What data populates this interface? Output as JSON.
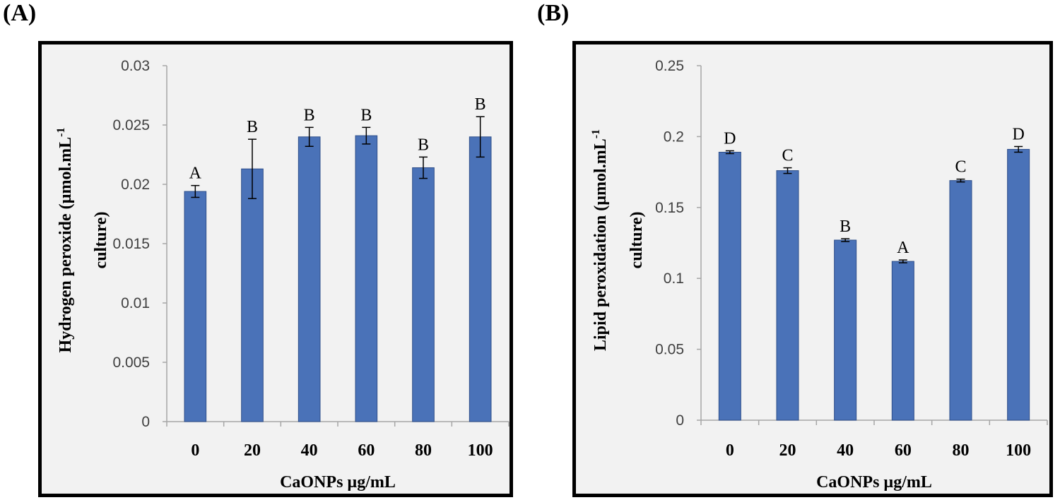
{
  "panels": {
    "a_label": "(A)",
    "b_label": "(B)"
  },
  "colors": {
    "bar": "#4a72b8",
    "bar_stroke": "#2f4f8a",
    "axis": "#a6a6a6"
  },
  "chart_data": [
    {
      "type": "bar",
      "title": "",
      "xlabel": "CaONPs µg/mL",
      "ylabel_line1": "Hydrogen peroxide (µmol.mL",
      "ylabel_sup": "-1",
      "ylabel_line2": "culture)",
      "categories": [
        "0",
        "20",
        "40",
        "60",
        "80",
        "100"
      ],
      "values": [
        0.0194,
        0.0213,
        0.024,
        0.0241,
        0.0214,
        0.024
      ],
      "errors": [
        0.0005,
        0.0025,
        0.0008,
        0.0007,
        0.0009,
        0.0017
      ],
      "letters": [
        "A",
        "B",
        "B",
        "B",
        "B",
        "B"
      ],
      "ylim": [
        0,
        0.03
      ],
      "yticks": [
        0,
        0.005,
        0.01,
        0.015,
        0.02,
        0.025,
        0.03
      ],
      "ytick_labels": [
        "0",
        "0.005",
        "0.01",
        "0.015",
        "0.02",
        "0.025",
        "0.03"
      ],
      "grid": false,
      "legend": "none"
    },
    {
      "type": "bar",
      "title": "",
      "xlabel": "CaONPs µg/mL",
      "ylabel_line1": "Lipid  peroxidation (µmol.mL",
      "ylabel_sup": "-1",
      "ylabel_line2": "culture)",
      "categories": [
        "0",
        "20",
        "40",
        "60",
        "80",
        "100"
      ],
      "values": [
        0.189,
        0.176,
        0.127,
        0.112,
        0.169,
        0.191
      ],
      "errors": [
        0.001,
        0.002,
        0.001,
        0.001,
        0.001,
        0.002
      ],
      "letters": [
        "D",
        "C",
        "B",
        "A",
        "C",
        "D"
      ],
      "ylim": [
        0,
        0.25
      ],
      "yticks": [
        0,
        0.05,
        0.1,
        0.15,
        0.2,
        0.25
      ],
      "ytick_labels": [
        "0",
        "0.05",
        "0.1",
        "0.15",
        "0.2",
        "0.25"
      ],
      "grid": false,
      "legend": "none"
    }
  ]
}
